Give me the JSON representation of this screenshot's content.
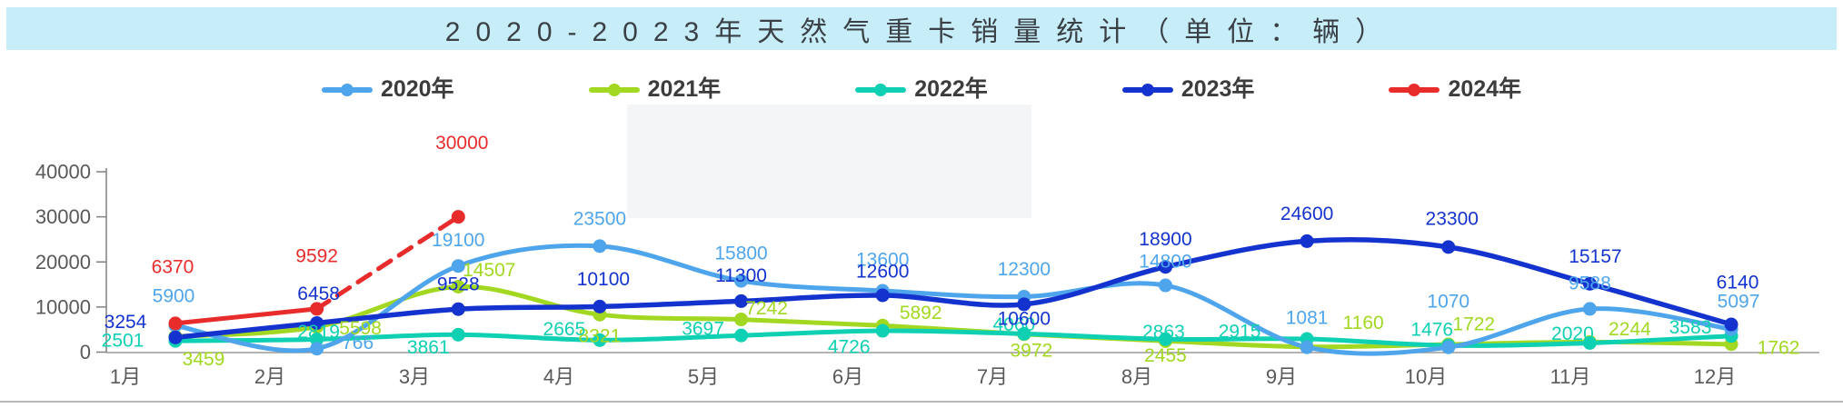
{
  "title": {
    "text": "2020-2023年天然气重卡销量统计（单位：辆）"
  },
  "chart_data": {
    "type": "line",
    "title": "2020-2023年天然气重卡销量统计",
    "unit_label": "单位：辆",
    "categories": [
      "1月",
      "2月",
      "3月",
      "4月",
      "5月",
      "6月",
      "7月",
      "8月",
      "9月",
      "10月",
      "11月",
      "12月"
    ],
    "yticks": [
      0,
      10000,
      20000,
      30000,
      40000
    ],
    "ylim": [
      0,
      40000
    ],
    "grid": false,
    "legend_position": "top",
    "axis_color": "#808080",
    "tick_text_color": "#595959",
    "series": [
      {
        "name": "2020年",
        "color": "#4FA5EB",
        "values": [
          5900,
          766,
          19100,
          23500,
          15800,
          13600,
          12300,
          14800,
          1081,
          1070,
          9588,
          5097
        ],
        "label_offsets": [
          [
            -2,
            -32
          ],
          [
            45,
            -6
          ],
          [
            0,
            -28
          ],
          [
            0,
            -30
          ],
          [
            0,
            -30
          ],
          [
            0,
            -34
          ],
          [
            0,
            -30
          ],
          [
            0,
            -26
          ],
          [
            0,
            -32
          ],
          [
            0,
            -50
          ],
          [
            0,
            -28
          ],
          [
            8,
            -30
          ]
        ]
      },
      {
        "name": "2021年",
        "color": "#A2D821",
        "values": [
          3459,
          5598,
          14507,
          8321,
          7242,
          5892,
          3972,
          2455,
          1160,
          1722,
          2244,
          1762
        ],
        "label_offsets": [
          [
            31,
            25
          ],
          [
            48,
            2
          ],
          [
            34,
            -18
          ],
          [
            0,
            24
          ],
          [
            28,
            -12
          ],
          [
            42,
            -14
          ],
          [
            8,
            18
          ],
          [
            0,
            16
          ],
          [
            62,
            -26
          ],
          [
            28,
            -22
          ],
          [
            44,
            -14
          ],
          [
            52,
            4
          ]
        ]
      },
      {
        "name": "2022年",
        "color": "#0FD0B2",
        "values": [
          2501,
          2819,
          3861,
          2665,
          3697,
          4726,
          4060,
          2863,
          2915,
          1476,
          2020,
          3583
        ],
        "label_offsets": [
          [
            -58,
            0
          ],
          [
            2,
            -8
          ],
          [
            -33,
            14
          ],
          [
            -39,
            -12
          ],
          [
            -42,
            -7
          ],
          [
            -37,
            18
          ],
          [
            -11,
            -10
          ],
          [
            -2,
            -8
          ],
          [
            -74,
            -8
          ],
          [
            -18,
            -17
          ],
          [
            -19,
            -10
          ],
          [
            -45,
            -9
          ]
        ]
      },
      {
        "name": "2023年",
        "color": "#1433CE",
        "values": [
          3254,
          6458,
          9528,
          10100,
          11300,
          12600,
          10600,
          18900,
          24600,
          23300,
          15157,
          6140
        ],
        "label_offsets": [
          [
            -55,
            -17
          ],
          [
            2,
            -32
          ],
          [
            0,
            -27
          ],
          [
            4,
            -30
          ],
          [
            0,
            -28
          ],
          [
            0,
            -26
          ],
          [
            0,
            16
          ],
          [
            0,
            -30
          ],
          [
            0,
            -30
          ],
          [
            4,
            -31
          ],
          [
            6,
            -30
          ],
          [
            7,
            -46
          ]
        ]
      },
      {
        "name": "2024年",
        "color": "#E82C2C",
        "values": [
          6370,
          9592,
          30000
        ],
        "dash_from_index": 1,
        "label_offsets": [
          [
            -3,
            -62
          ],
          [
            0,
            -58
          ],
          [
            4,
            -81
          ]
        ]
      }
    ]
  }
}
